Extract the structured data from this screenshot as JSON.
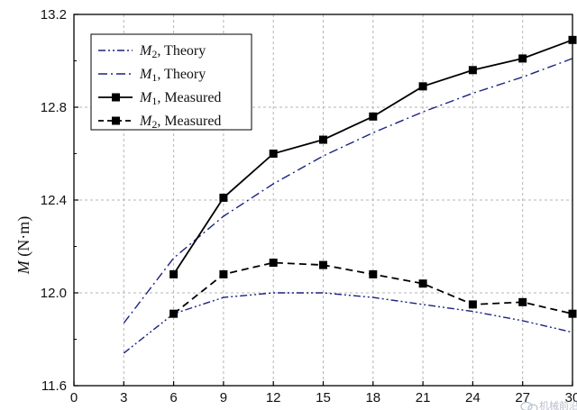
{
  "chart_data": {
    "type": "line",
    "title": "",
    "xlabel": "",
    "ylabel": "M (N·m)",
    "ylabel_parts": {
      "symbol": "M",
      "unit": " (N·m)"
    },
    "xlim": [
      0,
      30
    ],
    "ylim": [
      11.6,
      13.2
    ],
    "x_ticks": [
      0,
      3,
      6,
      9,
      12,
      15,
      18,
      21,
      24,
      27,
      30
    ],
    "y_ticks": [
      11.6,
      12.0,
      12.4,
      12.8,
      13.2
    ],
    "y_tick_labels": [
      "11.6",
      "12.0",
      "12.4",
      "12.8",
      "13.2"
    ],
    "grid": true,
    "legend_position": "top-left",
    "series": [
      {
        "name": "M2, Theory",
        "name_parts": {
          "symbol": "M",
          "sub": "2",
          "rest": ", Theory"
        },
        "style": "dash-dot-dot",
        "marker": "none",
        "color": "#1a237e",
        "x": [
          3,
          6,
          9,
          12,
          15,
          18,
          21,
          24,
          27,
          30
        ],
        "values": [
          11.74,
          11.91,
          11.98,
          12.0,
          12.0,
          11.98,
          11.95,
          11.92,
          11.88,
          11.83
        ]
      },
      {
        "name": "M1, Theory",
        "name_parts": {
          "symbol": "M",
          "sub": "1",
          "rest": ", Theory"
        },
        "style": "dash-dot",
        "marker": "none",
        "color": "#1a237e",
        "x": [
          3,
          6,
          9,
          12,
          15,
          18,
          21,
          24,
          27,
          30
        ],
        "values": [
          11.87,
          12.15,
          12.33,
          12.47,
          12.59,
          12.69,
          12.78,
          12.86,
          12.93,
          13.01
        ]
      },
      {
        "name": "M1, Measured",
        "name_parts": {
          "symbol": "M",
          "sub": "1",
          "rest": ", Measured"
        },
        "style": "solid",
        "marker": "square",
        "color": "#000000",
        "x": [
          6,
          9,
          12,
          15,
          18,
          21,
          24,
          27,
          30
        ],
        "values": [
          12.08,
          12.41,
          12.6,
          12.66,
          12.76,
          12.89,
          12.96,
          13.01,
          13.09
        ]
      },
      {
        "name": "M2, Measured",
        "name_parts": {
          "symbol": "M",
          "sub": "2",
          "rest": ", Measured"
        },
        "style": "dashed",
        "marker": "square",
        "color": "#000000",
        "x": [
          6,
          9,
          12,
          15,
          18,
          21,
          24,
          27,
          30
        ],
        "values": [
          11.91,
          12.08,
          12.13,
          12.12,
          12.08,
          12.04,
          11.95,
          11.96,
          11.91
        ]
      }
    ]
  },
  "watermark": {
    "icon": "wechat-logo-icon",
    "text": "机械前沿"
  }
}
